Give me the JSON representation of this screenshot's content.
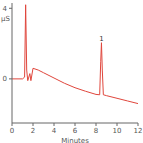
{
  "chart_data": {
    "type": "line",
    "xlabel": "Minutes",
    "ylabel": "µS",
    "x": [
      0,
      1.0,
      1.2,
      1.3,
      1.4,
      1.5,
      1.7,
      1.8,
      2.0,
      2.5,
      3,
      4,
      5,
      6,
      7,
      8,
      8.35,
      8.45,
      8.52,
      8.6,
      8.7,
      9,
      10,
      11,
      12
    ],
    "values": [
      0,
      0,
      0.1,
      4.2,
      0.5,
      -0.1,
      0.3,
      -0.1,
      0.6,
      0.5,
      0.35,
      0.05,
      -0.25,
      -0.5,
      -0.7,
      -0.88,
      -0.9,
      1.0,
      2.05,
      0.5,
      -0.9,
      -0.95,
      -1.1,
      -1.25,
      -1.4
    ],
    "color": "#e0463c",
    "xlim": [
      0,
      12
    ],
    "xticks": [
      0,
      2,
      4,
      6,
      8,
      10,
      12
    ],
    "ylim": [
      -2.5,
      4.3
    ],
    "yticks": [
      0,
      4
    ],
    "grid": false,
    "annotations": [
      {
        "text": "1",
        "x": 8.52,
        "y": 2.05
      }
    ]
  }
}
